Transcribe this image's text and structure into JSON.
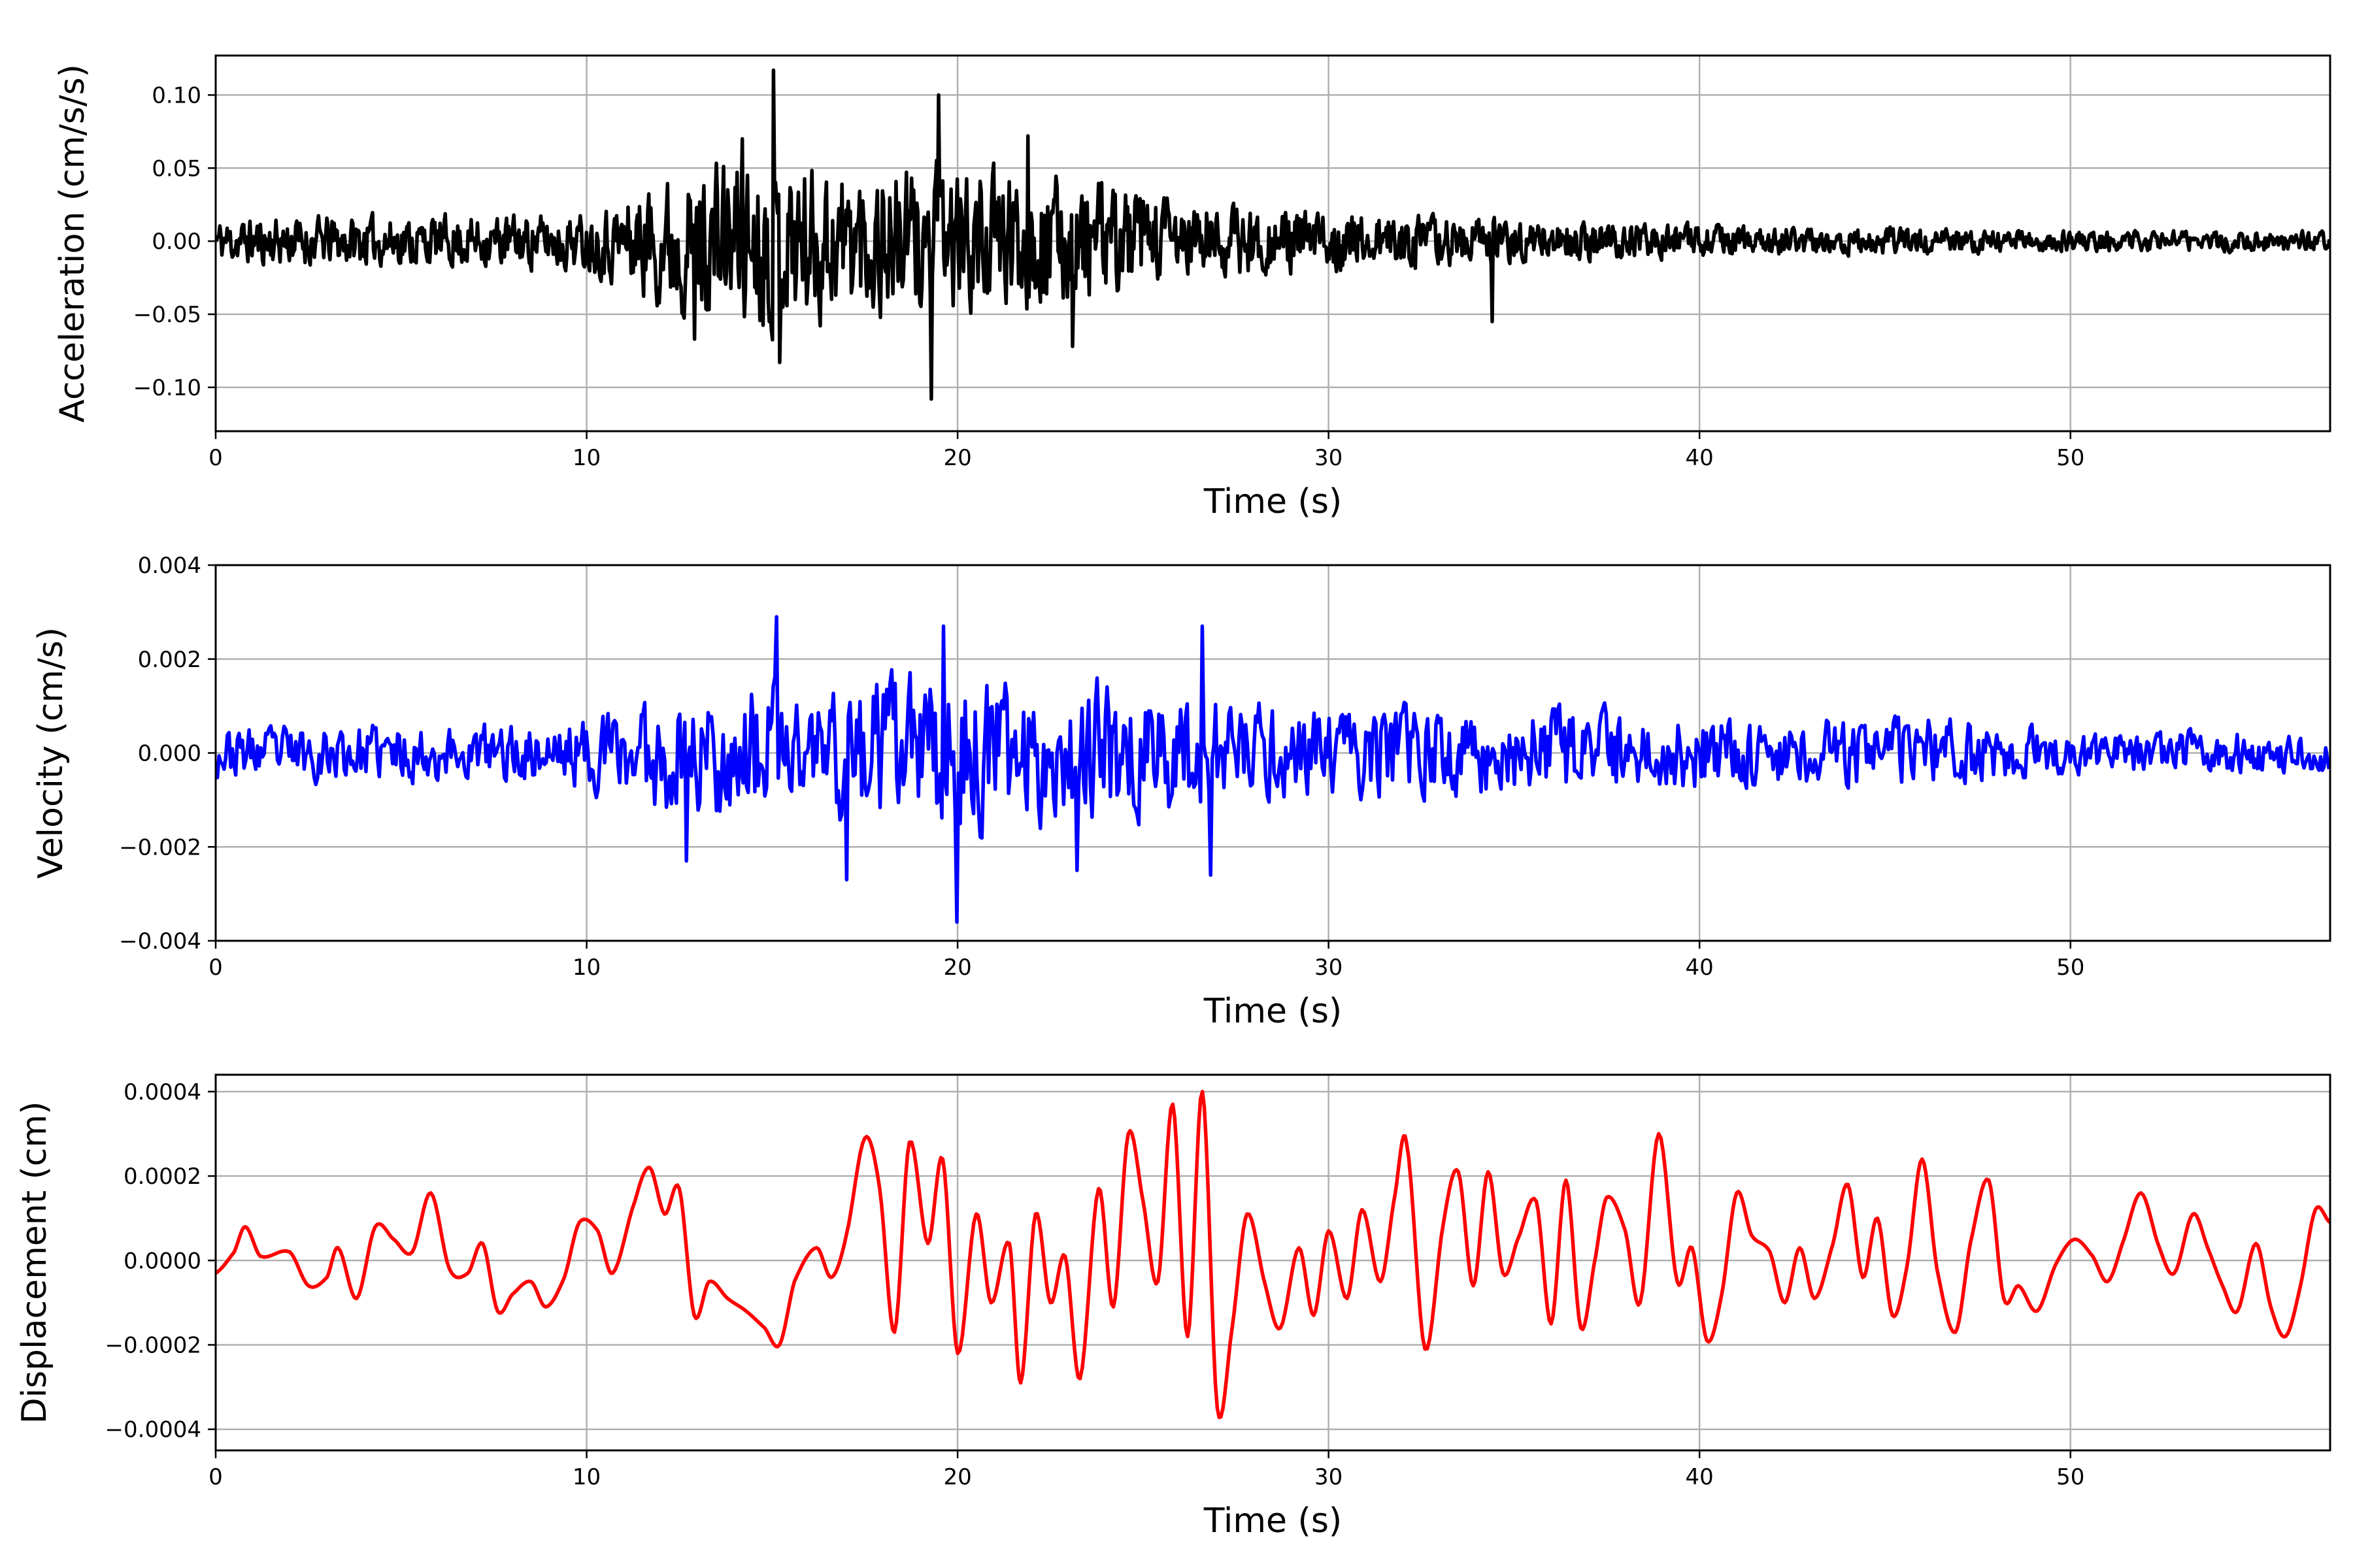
{
  "chart_data": [
    {
      "type": "line",
      "id": "acceleration",
      "xlabel": "Time (s)",
      "ylabel": "Acceleration (cm/s/s)",
      "xlim": [
        0,
        57
      ],
      "ylim": [
        -0.13,
        0.127
      ],
      "xticks": [
        0,
        10,
        20,
        30,
        40,
        50
      ],
      "xtick_labels": [
        "0",
        "10",
        "20",
        "30",
        "40",
        "50"
      ],
      "yticks": [
        -0.1,
        -0.05,
        0.0,
        0.05,
        0.1
      ],
      "ytick_labels": [
        "−0.10",
        "−0.05",
        "0.00",
        "0.05",
        "0.10"
      ],
      "grid": true,
      "series": [
        {
          "color": "#000000",
          "envelope": [
            [
              0,
              0.02
            ],
            [
              2,
              0.022
            ],
            [
              6,
              0.022
            ],
            [
              10,
              0.025
            ],
            [
              12,
              0.055
            ],
            [
              14,
              0.075
            ],
            [
              16,
              0.07
            ],
            [
              18,
              0.065
            ],
            [
              20,
              0.062
            ],
            [
              22,
              0.058
            ],
            [
              24,
              0.05
            ],
            [
              26,
              0.038
            ],
            [
              28,
              0.03
            ],
            [
              30,
              0.026
            ],
            [
              34,
              0.02
            ],
            [
              40,
              0.014
            ],
            [
              46,
              0.011
            ],
            [
              52,
              0.009
            ],
            [
              57,
              0.009
            ]
          ],
          "peaks": [
            [
              15.05,
              0.117
            ],
            [
              15.2,
              -0.083
            ],
            [
              19.3,
              -0.108
            ],
            [
              19.5,
              0.1
            ],
            [
              14.2,
              0.07
            ],
            [
              21.9,
              0.072
            ],
            [
              34.4,
              -0.055
            ],
            [
              12.9,
              -0.067
            ],
            [
              23.1,
              -0.072
            ]
          ]
        }
      ]
    },
    {
      "type": "line",
      "id": "velocity",
      "xlabel": "Time (s)",
      "ylabel": "Velocity (cm/s)",
      "xlim": [
        0,
        57
      ],
      "ylim": [
        -0.004,
        0.004
      ],
      "xticks": [
        0,
        10,
        20,
        30,
        40,
        50
      ],
      "xtick_labels": [
        "0",
        "10",
        "20",
        "30",
        "40",
        "50"
      ],
      "yticks": [
        -0.004,
        -0.002,
        0.0,
        0.002,
        0.004
      ],
      "ytick_labels": [
        "−0.004",
        "−0.002",
        "0.000",
        "0.002",
        "0.004"
      ],
      "grid": true,
      "series": [
        {
          "color": "#0000ff",
          "envelope": [
            [
              0,
              0.0007
            ],
            [
              4,
              0.0008
            ],
            [
              8,
              0.0008
            ],
            [
              10,
              0.001
            ],
            [
              12,
              0.0017
            ],
            [
              14,
              0.0019
            ],
            [
              16,
              0.0019
            ],
            [
              18,
              0.0021
            ],
            [
              20,
              0.0022
            ],
            [
              22,
              0.0019
            ],
            [
              24,
              0.0019
            ],
            [
              26,
              0.0017
            ],
            [
              28,
              0.0013
            ],
            [
              30,
              0.0012
            ],
            [
              34,
              0.0013
            ],
            [
              38,
              0.0012
            ],
            [
              42,
              0.0009
            ],
            [
              46,
              0.001
            ],
            [
              50,
              0.0006
            ],
            [
              54,
              0.0006
            ],
            [
              57,
              0.0006
            ]
          ],
          "peaks": [
            [
              15.1,
              0.0029
            ],
            [
              20.0,
              -0.0036
            ],
            [
              19.6,
              0.0027
            ],
            [
              26.6,
              0.0027
            ],
            [
              17.0,
              -0.0027
            ],
            [
              26.8,
              -0.0026
            ],
            [
              23.2,
              -0.0025
            ],
            [
              12.7,
              -0.0023
            ]
          ]
        }
      ]
    },
    {
      "type": "line",
      "id": "displacement",
      "xlabel": "Time (s)",
      "ylabel": "Displacement (cm)",
      "xlim": [
        0,
        57
      ],
      "ylim": [
        -0.00045,
        0.00044
      ],
      "xticks": [
        0,
        10,
        20,
        30,
        40,
        50
      ],
      "xtick_labels": [
        "0",
        "10",
        "20",
        "30",
        "40",
        "50"
      ],
      "yticks": [
        -0.0004,
        -0.0002,
        0.0,
        0.0002,
        0.0004
      ],
      "ytick_labels": [
        "−0.0004",
        "−0.0002",
        "0.0000",
        "0.0002",
        "0.0004"
      ],
      "grid": true,
      "series": [
        {
          "color": "#ff0000",
          "points": [
            [
              0,
              -3e-05
            ],
            [
              0.5,
              2e-05
            ],
            [
              0.8,
              8e-05
            ],
            [
              1.2,
              1e-05
            ],
            [
              2.0,
              2e-05
            ],
            [
              2.5,
              -6e-05
            ],
            [
              3.0,
              -4e-05
            ],
            [
              3.3,
              3e-05
            ],
            [
              3.8,
              -9e-05
            ],
            [
              4.3,
              8e-05
            ],
            [
              4.8,
              5e-05
            ],
            [
              5.3,
              2e-05
            ],
            [
              5.8,
              0.00016
            ],
            [
              6.3,
              -2e-05
            ],
            [
              6.8,
              -3e-05
            ],
            [
              7.2,
              4e-05
            ],
            [
              7.6,
              -0.00012
            ],
            [
              8.0,
              -8e-05
            ],
            [
              8.5,
              -5e-05
            ],
            [
              8.9,
              -0.00011
            ],
            [
              9.4,
              -4e-05
            ],
            [
              9.8,
              9e-05
            ],
            [
              10.3,
              7e-05
            ],
            [
              10.7,
              -3e-05
            ],
            [
              11.3,
              0.00014
            ],
            [
              11.7,
              0.00022
            ],
            [
              12.1,
              0.00011
            ],
            [
              12.5,
              0.00017
            ],
            [
              12.9,
              -0.00013
            ],
            [
              13.3,
              -5e-05
            ],
            [
              13.8,
              -9e-05
            ],
            [
              14.3,
              -0.00012
            ],
            [
              14.8,
              -0.00016
            ],
            [
              15.2,
              -0.0002
            ],
            [
              15.6,
              -5e-05
            ],
            [
              16.2,
              3e-05
            ],
            [
              16.6,
              -4e-05
            ],
            [
              17.0,
              6e-05
            ],
            [
              17.5,
              0.00029
            ],
            [
              17.9,
              0.00017
            ],
            [
              18.3,
              -0.00017
            ],
            [
              18.7,
              0.00028
            ],
            [
              19.2,
              4e-05
            ],
            [
              19.6,
              0.00024
            ],
            [
              20.0,
              -0.00022
            ],
            [
              20.5,
              0.00011
            ],
            [
              20.9,
              -0.0001
            ],
            [
              21.4,
              4e-05
            ],
            [
              21.7,
              -0.00029
            ],
            [
              22.1,
              0.00011
            ],
            [
              22.5,
              -0.0001
            ],
            [
              22.9,
              1e-05
            ],
            [
              23.3,
              -0.00028
            ],
            [
              23.8,
              0.00017
            ],
            [
              24.2,
              -0.00011
            ],
            [
              24.6,
              0.0003
            ],
            [
              25.0,
              0.00014
            ],
            [
              25.4,
              -5e-05
            ],
            [
              25.8,
              0.00037
            ],
            [
              26.2,
              -0.00018
            ],
            [
              26.6,
              0.0004
            ],
            [
              27.0,
              -0.00035
            ],
            [
              27.4,
              -0.00016
            ],
            [
              27.8,
              0.00011
            ],
            [
              28.3,
              -6e-05
            ],
            [
              28.7,
              -0.00016
            ],
            [
              29.2,
              3e-05
            ],
            [
              29.6,
              -0.00013
            ],
            [
              30.0,
              7e-05
            ],
            [
              30.5,
              -9e-05
            ],
            [
              30.9,
              0.00012
            ],
            [
              31.4,
              -5e-05
            ],
            [
              31.8,
              0.00016
            ],
            [
              32.1,
              0.00028
            ],
            [
              32.6,
              -0.00021
            ],
            [
              33.1,
              9e-05
            ],
            [
              33.5,
              0.00021
            ],
            [
              33.9,
              -6e-05
            ],
            [
              34.3,
              0.00021
            ],
            [
              34.7,
              -3e-05
            ],
            [
              35.1,
              5e-05
            ],
            [
              35.6,
              0.00014
            ],
            [
              36.0,
              -0.00015
            ],
            [
              36.4,
              0.00019
            ],
            [
              36.8,
              -0.00016
            ],
            [
              37.2,
              1e-05
            ],
            [
              37.5,
              0.00015
            ],
            [
              38.0,
              7e-05
            ],
            [
              38.4,
              -0.0001
            ],
            [
              38.9,
              0.0003
            ],
            [
              39.4,
              -5e-05
            ],
            [
              39.8,
              3e-05
            ],
            [
              40.2,
              -0.00019
            ],
            [
              40.6,
              -8e-05
            ],
            [
              41.0,
              0.00016
            ],
            [
              41.4,
              6e-05
            ],
            [
              41.9,
              2e-05
            ],
            [
              42.3,
              -0.0001
            ],
            [
              42.7,
              3e-05
            ],
            [
              43.1,
              -9e-05
            ],
            [
              43.6,
              4e-05
            ],
            [
              44.0,
              0.00018
            ],
            [
              44.4,
              -4e-05
            ],
            [
              44.8,
              0.0001
            ],
            [
              45.2,
              -0.00013
            ],
            [
              45.6,
              -1e-05
            ],
            [
              46.0,
              0.00024
            ],
            [
              46.4,
              -2e-05
            ],
            [
              46.9,
              -0.00017
            ],
            [
              47.3,
              4e-05
            ],
            [
              47.8,
              0.00019
            ],
            [
              48.2,
              -9e-05
            ],
            [
              48.6,
              -6e-05
            ],
            [
              49.1,
              -0.00012
            ],
            [
              49.6,
              -1e-05
            ],
            [
              50.1,
              5e-05
            ],
            [
              50.6,
              1e-05
            ],
            [
              51.0,
              -5e-05
            ],
            [
              51.4,
              4e-05
            ],
            [
              51.9,
              0.00016
            ],
            [
              52.4,
              3e-05
            ],
            [
              52.8,
              -3e-05
            ],
            [
              53.3,
              0.00011
            ],
            [
              53.7,
              3e-05
            ],
            [
              54.1,
              -6e-05
            ],
            [
              54.5,
              -0.00012
            ],
            [
              55.0,
              4e-05
            ],
            [
              55.4,
              -0.00011
            ],
            [
              55.8,
              -0.00018
            ],
            [
              56.2,
              -6e-05
            ],
            [
              56.6,
              0.00012
            ],
            [
              57.0,
              9e-05
            ]
          ]
        }
      ]
    }
  ]
}
